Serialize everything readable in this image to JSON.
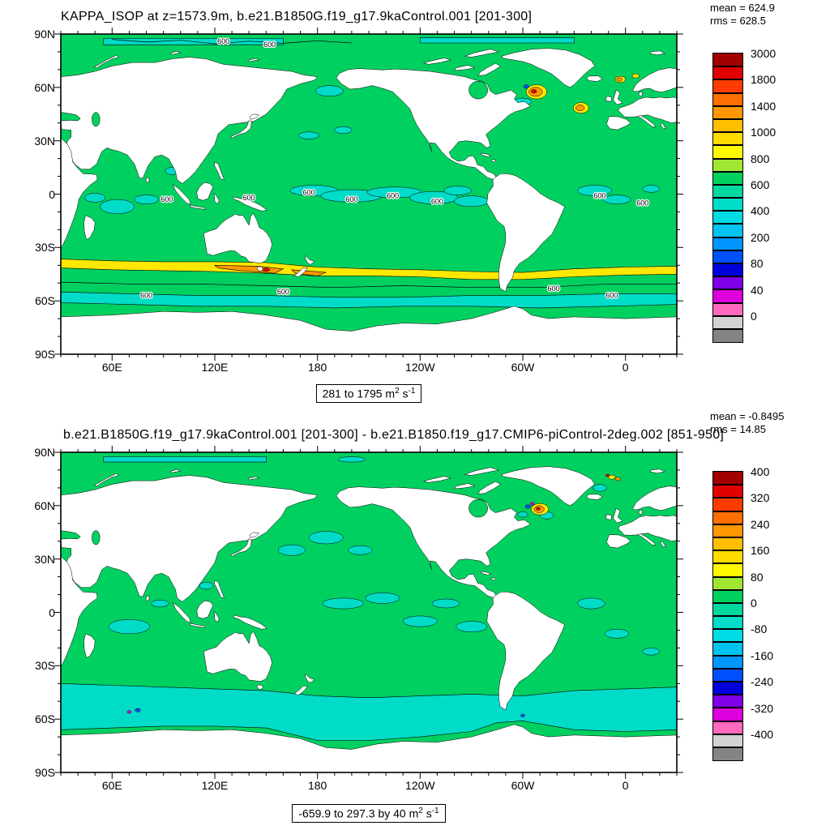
{
  "palette": {
    "ocean": "#00d060",
    "cyan": "#00dcc8",
    "yellow": "#ffe800",
    "orange": "#ff9800",
    "red": "#e10000",
    "blue": "#0050ff",
    "magenta": "#dc00dc",
    "land": "#ffffff",
    "frame": "#000000"
  },
  "panels": [
    {
      "title": "KAPPA_ISOP at z=1573.9m, b.e21.B1850G.f19_g17.9kaControl.001 [201-300]",
      "stats": {
        "mean": "mean = 624.9",
        "rms": "rms = 628.5"
      },
      "range_label": {
        "prefix": "281 to 1795 m",
        "exp1": "2",
        "mid": " s",
        "exp2": "-1"
      },
      "contour_label": "600",
      "axes": {
        "lat": [
          "90N",
          "60N",
          "30N",
          "0",
          "30S",
          "60S",
          "90S"
        ],
        "lon": [
          "60E",
          "120E",
          "180",
          "120W",
          "60W",
          "0"
        ]
      },
      "colorbar": {
        "labels": [
          "3000",
          "1800",
          "1400",
          "1000",
          "800",
          "600",
          "400",
          "200",
          "80",
          "40",
          "0"
        ],
        "colors": [
          "#a00000",
          "#e10000",
          "#ff3c00",
          "#ff6e00",
          "#ff9800",
          "#ffbe00",
          "#ffdc00",
          "#fffa00",
          "#a0e632",
          "#00d060",
          "#00d8a0",
          "#00dcc8",
          "#00dce6",
          "#00c3f0",
          "#0096ff",
          "#0050ff",
          "#0000dc",
          "#7d00e6",
          "#dc00dc",
          "#ff69be",
          "#d3d3d3",
          "#848484"
        ]
      }
    },
    {
      "title": "b.e21.B1850G.f19_g17.9kaControl.001 [201-300] - b.e21.B1850.f19_g17.CMIP6-piControl-2deg.002 [851-950]",
      "stats": {
        "mean": "mean = -0.8495",
        "rms": "rms = 14.85"
      },
      "range_label": {
        "prefix": "-659.9 to 297.3 by 40 m",
        "exp1": "2",
        "mid": " s",
        "exp2": "-1"
      },
      "contour_label": "",
      "axes": {
        "lat": [
          "90N",
          "60N",
          "30N",
          "0",
          "30S",
          "60S",
          "90S"
        ],
        "lon": [
          "60E",
          "120E",
          "180",
          "120W",
          "60W",
          "0"
        ]
      },
      "colorbar": {
        "labels": [
          "400",
          "320",
          "240",
          "160",
          "80",
          "0",
          "-80",
          "-160",
          "-240",
          "-320",
          "-400"
        ],
        "colors": [
          "#a00000",
          "#e10000",
          "#ff3c00",
          "#ff6e00",
          "#ff9800",
          "#ffbe00",
          "#ffdc00",
          "#fffa00",
          "#a0e632",
          "#00d060",
          "#00d8a0",
          "#00dcc8",
          "#00dce6",
          "#00c3f0",
          "#0096ff",
          "#0050ff",
          "#0000dc",
          "#7d00e6",
          "#dc00dc",
          "#ff69be",
          "#d3d3d3",
          "#848484"
        ]
      }
    }
  ],
  "chart_data": [
    {
      "type": "heatmap",
      "subtype": "global-filled-contour-map",
      "title": "KAPPA_ISOP at z=1573.9m, b.e21.B1850G.f19_g17.9kaControl.001 [201-300]",
      "units": "m2 s-1",
      "mean": 624.9,
      "rms": 628.5,
      "data_min": 281,
      "data_max": 1795,
      "contour_levels": [
        0,
        40,
        80,
        200,
        400,
        600,
        800,
        1000,
        1400,
        1800,
        3000
      ],
      "x_ticks": [
        "60E",
        "120E",
        "180",
        "120W",
        "60W",
        "0"
      ],
      "y_ticks": [
        "90N",
        "60N",
        "30N",
        "0",
        "30S",
        "60S",
        "90S"
      ],
      "legend_position": "right",
      "description": "Isopycnal diffusivity at 1573.9 m depth: most of the ocean 600-800, tropical patches 400-600 (cyan), a circumpolar band near 40S at 800-1400 (yellow/orange), and a Labrador Sea maximum 1400-1800 (orange/red). Contour lines labeled 600."
    },
    {
      "type": "heatmap",
      "subtype": "global-filled-contour-difference-map",
      "title": "b.e21.B1850G.f19_g17.9kaControl.001 [201-300] - b.e21.B1850.f19_g17.CMIP6-piControl-2deg.002 [851-950]",
      "units": "m2 s-1",
      "mean": -0.8495,
      "rms": 14.85,
      "data_min": -659.9,
      "data_max": 297.3,
      "contour_interval": 40,
      "contour_levels": [
        -400,
        -320,
        -240,
        -160,
        -80,
        0,
        80,
        160,
        240,
        320,
        400
      ],
      "x_ticks": [
        "60E",
        "120E",
        "180",
        "120W",
        "60W",
        "0"
      ],
      "y_ticks": [
        "90N",
        "60N",
        "30N",
        "0",
        "30S",
        "60S",
        "90S"
      ],
      "legend_position": "right",
      "description": "Difference map: near zero (0 to 80, green) over most of the ocean, slightly negative (-80 to 0, cyan) across the Southern Ocean and tropical patches, with localized positive/negative extremes in the Labrador Sea."
    }
  ]
}
